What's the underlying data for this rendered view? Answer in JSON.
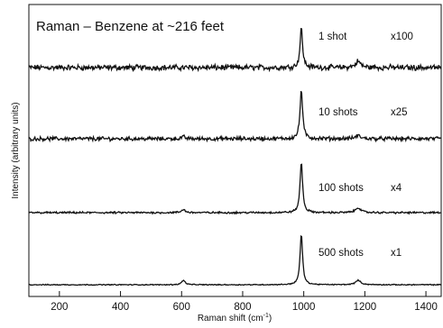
{
  "chart_data": {
    "type": "line",
    "title": "Raman – Benzene at ~216 feet",
    "xlabel": "Raman shift (cm",
    "xlabel_sup": "-1",
    "xlabel_close": ")",
    "ylabel": "Intensity (arbitrary units)",
    "xlim": [
      100,
      1450
    ],
    "x_ticks": [
      200,
      400,
      600,
      800,
      1000,
      1200,
      1400
    ],
    "x_tick_labels": [
      "200",
      "400",
      "600",
      "800",
      "1000",
      "1200",
      "1400"
    ],
    "y_ticks_shown": false,
    "grid": false,
    "peak_positions_cm-1": [
      606,
      992,
      1178
    ],
    "series": [
      {
        "shots_label": "1 shot",
        "scale_label": "x100",
        "peak_992": 0.62,
        "peak_606": 0.0,
        "peak_1178": 0.1,
        "noise": 0.035
      },
      {
        "shots_label": "10 shots",
        "scale_label": "x25",
        "peak_992": 0.78,
        "peak_606": 0.03,
        "peak_1178": 0.05,
        "noise": 0.025
      },
      {
        "shots_label": "100 shots",
        "scale_label": "x4",
        "peak_992": 0.8,
        "peak_606": 0.05,
        "peak_1178": 0.08,
        "noise": 0.012
      },
      {
        "shots_label": "500 shots",
        "scale_label": "x1",
        "peak_992": 0.8,
        "peak_606": 0.07,
        "peak_1178": 0.07,
        "noise": 0.006
      }
    ]
  }
}
